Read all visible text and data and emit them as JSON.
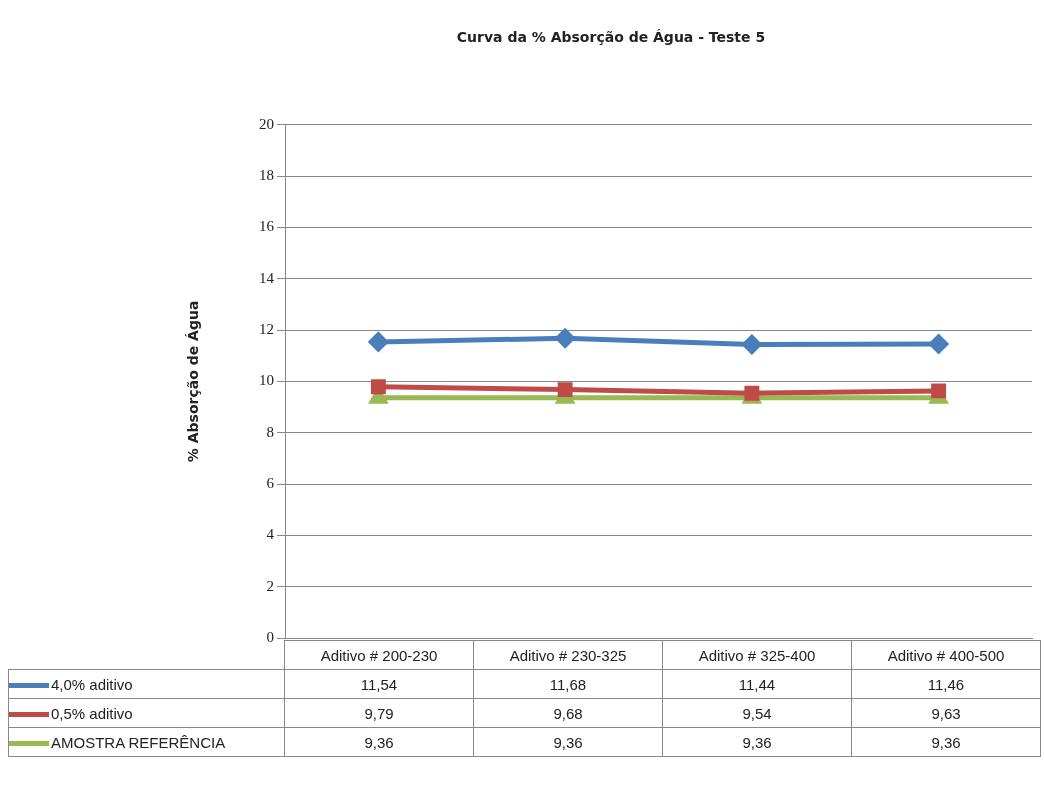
{
  "chart_data": {
    "type": "line",
    "title": "Curva da % Absorção de Água - Teste 5",
    "ylabel": "% Absorção de Água",
    "categories": [
      "Aditivo # 200-230",
      "Aditivo # 230-325",
      "Aditivo # 325-400",
      "Aditivo # 400-500"
    ],
    "series": [
      {
        "name": "4,0% aditivo",
        "color": "#4a7ebb",
        "marker": "diamond",
        "values": [
          11.54,
          11.68,
          11.44,
          11.46
        ],
        "value_labels": [
          "11,54",
          "11,68",
          "11,44",
          "11,46"
        ]
      },
      {
        "name": "0,5% aditivo",
        "color": "#be4b48",
        "marker": "square",
        "values": [
          9.79,
          9.68,
          9.54,
          9.63
        ],
        "value_labels": [
          "9,79",
          "9,68",
          "9,54",
          "9,63"
        ]
      },
      {
        "name": "AMOSTRA REFERÊNCIA",
        "color": "#98b954",
        "marker": "triangle",
        "values": [
          9.36,
          9.36,
          9.36,
          9.36
        ],
        "value_labels": [
          "9,36",
          "9,36",
          "9,36",
          "9,36"
        ]
      }
    ],
    "ylim": [
      0,
      20
    ],
    "yticks": [
      0,
      2,
      4,
      6,
      8,
      10,
      12,
      14,
      16,
      18,
      20
    ],
    "grid": "y",
    "legend": "bottom"
  }
}
